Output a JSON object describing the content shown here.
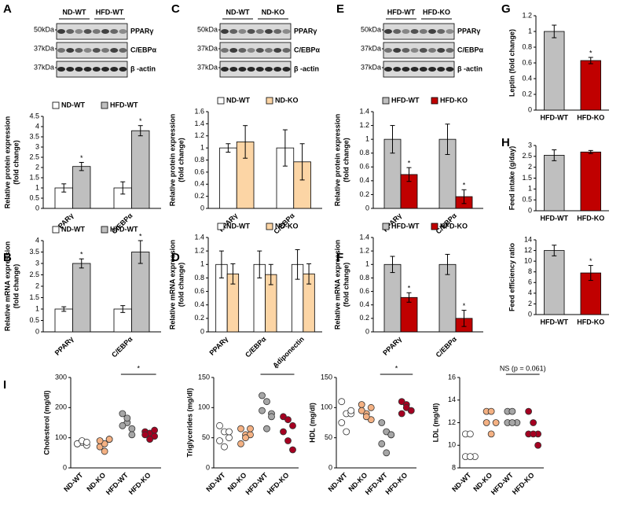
{
  "chart_data": [
    {
      "type": "bar",
      "panel": "A",
      "ylabel": [
        "Relative protein expression",
        "(fold change)"
      ],
      "categories": [
        "PPARγ",
        "C/EBPα"
      ],
      "rotate_labels": true,
      "legend": true,
      "series": [
        {
          "name": "ND-WT",
          "color": "#ffffff",
          "values": [
            1,
            1
          ],
          "errors": [
            0.2,
            0.3
          ],
          "significance": [
            null,
            null
          ]
        },
        {
          "name": "HFD-WT",
          "color": "#bfbfbf",
          "values": [
            2.05,
            3.8
          ],
          "errors": [
            0.2,
            0.25
          ],
          "significance": [
            "*",
            "*"
          ]
        }
      ],
      "ylim": [
        0,
        4.5
      ],
      "yticks": [
        0,
        0.5,
        1,
        1.5,
        2,
        2.5,
        3,
        3.5,
        4,
        4.5
      ],
      "blot": {
        "groups": [
          "ND-WT",
          "HFD-WT"
        ],
        "markers": [
          "50kDa",
          "37kDa",
          "37kDa"
        ],
        "proteins": [
          "PPARγ",
          "C/EBPα",
          "β -actin"
        ]
      }
    },
    {
      "type": "bar",
      "panel": "B",
      "ylabel": [
        "Relative mRNA expression",
        "(fold change)"
      ],
      "categories": [
        "PPARγ",
        "C/EBPα"
      ],
      "rotate_labels": true,
      "legend": true,
      "series": [
        {
          "name": "ND-WT",
          "color": "#ffffff",
          "values": [
            1,
            1
          ],
          "errors": [
            0.1,
            0.15
          ],
          "significance": [
            null,
            null
          ]
        },
        {
          "name": "HFD-WT",
          "color": "#bfbfbf",
          "values": [
            3,
            3.5
          ],
          "errors": [
            0.2,
            0.5
          ],
          "significance": [
            "*",
            "*"
          ]
        }
      ],
      "ylim": [
        0,
        4
      ],
      "yticks": [
        0,
        0.5,
        1,
        1.5,
        2,
        2.5,
        3,
        3.5,
        4
      ]
    },
    {
      "type": "bar",
      "panel": "C",
      "ylabel": [
        "Relative protein expression",
        "(fold change)"
      ],
      "categories": [
        "PPARγ",
        "C/EBPα"
      ],
      "rotate_labels": true,
      "legend": true,
      "series": [
        {
          "name": "ND-WT",
          "color": "#ffffff",
          "values": [
            1,
            1
          ],
          "errors": [
            0.07,
            0.3
          ],
          "significance": [
            null,
            null
          ]
        },
        {
          "name": "ND-KO",
          "color": "#fcd5a5",
          "values": [
            1.1,
            0.77
          ],
          "errors": [
            0.27,
            0.3
          ],
          "significance": [
            null,
            null
          ]
        }
      ],
      "ylim": [
        0,
        1.6
      ],
      "yticks": [
        0,
        0.2,
        0.4,
        0.6,
        0.8,
        1,
        1.2,
        1.4,
        1.6
      ],
      "blot": {
        "groups": [
          "ND-WT",
          "ND-KO"
        ],
        "markers": [
          "50kDa",
          "37kDa",
          "37kDa"
        ],
        "proteins": [
          "PPARγ",
          "C/EBPα",
          "β -actin"
        ]
      }
    },
    {
      "type": "bar",
      "panel": "D",
      "ylabel": [
        "Relative mRNA expression",
        "(fold change)"
      ],
      "categories": [
        "PPARγ",
        "C/EBPα",
        "Adiponectin"
      ],
      "rotate_labels": true,
      "legend": true,
      "series": [
        {
          "name": "ND-WT",
          "color": "#ffffff",
          "values": [
            1,
            1,
            1
          ],
          "errors": [
            0.2,
            0.2,
            0.22
          ],
          "significance": [
            null,
            null,
            null
          ]
        },
        {
          "name": "ND-KO",
          "color": "#fcd5a5",
          "values": [
            0.86,
            0.85,
            0.86
          ],
          "errors": [
            0.15,
            0.15,
            0.15
          ],
          "significance": [
            null,
            null,
            null
          ]
        }
      ],
      "ylim": [
        0,
        1.4
      ],
      "yticks": [
        0,
        0.2,
        0.4,
        0.6,
        0.8,
        1,
        1.2,
        1.4
      ]
    },
    {
      "type": "bar",
      "panel": "E",
      "ylabel": [
        "Relative protein expression",
        "(fold change)"
      ],
      "categories": [
        "PPARγ",
        "C/EBPα"
      ],
      "rotate_labels": true,
      "legend": true,
      "series": [
        {
          "name": "HFD-WT",
          "color": "#bfbfbf",
          "values": [
            1,
            1
          ],
          "errors": [
            0.2,
            0.22
          ],
          "significance": [
            null,
            null
          ]
        },
        {
          "name": "HFD-KO",
          "color": "#c00000",
          "values": [
            0.49,
            0.17
          ],
          "errors": [
            0.1,
            0.1
          ],
          "significance": [
            "*",
            "*"
          ]
        }
      ],
      "ylim": [
        0,
        1.4
      ],
      "yticks": [
        0,
        0.2,
        0.4,
        0.6,
        0.8,
        1,
        1.2,
        1.4
      ],
      "blot": {
        "groups": [
          "HFD-WT",
          "HFD-KO"
        ],
        "markers": [
          "50kDa",
          "37kDa",
          "37kDa"
        ],
        "proteins": [
          "PPARγ",
          "C/EBPα",
          "β -actin"
        ]
      }
    },
    {
      "type": "bar",
      "panel": "F",
      "ylabel": [
        "Relative mRNA expression",
        "(fold change)"
      ],
      "categories": [
        "PPARγ",
        "C/EBPα"
      ],
      "rotate_labels": true,
      "legend": true,
      "series": [
        {
          "name": "HFD-WT",
          "color": "#bfbfbf",
          "values": [
            1,
            1
          ],
          "errors": [
            0.12,
            0.15
          ],
          "significance": [
            null,
            null
          ]
        },
        {
          "name": "HFD-KO",
          "color": "#c00000",
          "values": [
            0.51,
            0.2
          ],
          "errors": [
            0.07,
            0.12
          ],
          "significance": [
            "*",
            "*"
          ]
        }
      ],
      "ylim": [
        0,
        1.4
      ],
      "yticks": [
        0,
        0.2,
        0.4,
        0.6,
        0.8,
        1,
        1.2,
        1.4
      ]
    },
    {
      "type": "bar",
      "panel": "G",
      "ylabel": [
        "Leptin (fold change)"
      ],
      "categories": [
        "HFD-WT",
        "HFD-KO"
      ],
      "rotate_labels": false,
      "legend": false,
      "values": [
        1,
        0.63
      ],
      "errors": [
        0.08,
        0.04
      ],
      "significance": [
        null,
        "*"
      ],
      "colors": [
        "#bfbfbf",
        "#c00000"
      ],
      "ylim": [
        0,
        1.2
      ],
      "yticks": [
        0,
        0.2,
        0.4,
        0.6,
        0.8,
        1,
        1.2
      ]
    },
    {
      "type": "bar",
      "panel": "H",
      "ylabel": [
        "Feed intake (g/day)"
      ],
      "categories": [
        "HFD-WT",
        "HFD-KO"
      ],
      "rotate_labels": false,
      "legend": false,
      "values": [
        2.55,
        2.7
      ],
      "errors": [
        0.25,
        0.07
      ],
      "significance": [
        null,
        null
      ],
      "colors": [
        "#bfbfbf",
        "#c00000"
      ],
      "ylim": [
        0,
        3
      ],
      "yticks": [
        0,
        0.5,
        1,
        1.5,
        2,
        2.5,
        3
      ]
    },
    {
      "type": "bar",
      "ylabel": [
        "Feed efficiency ratio"
      ],
      "categories": [
        "HFD-WT",
        "HFD-KO"
      ],
      "rotate_labels": false,
      "legend": false,
      "values": [
        12,
        7.8
      ],
      "errors": [
        1,
        1.4
      ],
      "significance": [
        null,
        "*"
      ],
      "colors": [
        "#bfbfbf",
        "#c00000"
      ],
      "ylim": [
        0,
        14
      ],
      "yticks": [
        0,
        2,
        4,
        6,
        8,
        10,
        12,
        14
      ]
    },
    {
      "type": "dot",
      "panel": "I",
      "ylabel": [
        "Cholesterol (mg/dl)"
      ],
      "annotation": "*",
      "series": [
        {
          "name": "ND-WT",
          "color": "#ffffff",
          "values": [
            80,
            85,
            75,
            80,
            90,
            85
          ]
        },
        {
          "name": "ND-KO",
          "color": "#f4b183",
          "values": [
            70,
            80,
            95,
            90,
            55,
            95
          ]
        },
        {
          "name": "HFD-WT",
          "color": "#a6a6a6",
          "values": [
            180,
            150,
            130,
            140,
            165,
            110
          ]
        },
        {
          "name": "HFD-KO",
          "color": "#a50021",
          "values": [
            120,
            115,
            105,
            110,
            95,
            125
          ]
        }
      ],
      "ylim": [
        0,
        300
      ],
      "yticks": [
        0,
        100,
        200,
        300
      ]
    },
    {
      "type": "dot",
      "ylabel": [
        "Triglycerides (mg/dl)"
      ],
      "annotation": "*",
      "series": [
        {
          "name": "ND-WT",
          "color": "#ffffff",
          "values": [
            70,
            60,
            50,
            45,
            35,
            60
          ]
        },
        {
          "name": "ND-KO",
          "color": "#f4b183",
          "values": [
            65,
            55,
            55,
            40,
            50,
            65
          ]
        },
        {
          "name": "HFD-WT",
          "color": "#a6a6a6",
          "values": [
            120,
            110,
            90,
            95,
            65,
            85
          ]
        },
        {
          "name": "HFD-KO",
          "color": "#a50021",
          "values": [
            85,
            80,
            70,
            60,
            45,
            30
          ]
        }
      ],
      "ylim": [
        0,
        150
      ],
      "yticks": [
        0,
        50,
        100,
        150
      ]
    },
    {
      "type": "dot",
      "ylabel": [
        "HDL (mg/dl)"
      ],
      "annotation": "*",
      "series": [
        {
          "name": "ND-WT",
          "color": "#ffffff",
          "values": [
            110,
            90,
            90,
            75,
            60,
            95
          ]
        },
        {
          "name": "ND-KO",
          "color": "#f4b183",
          "values": [
            105,
            90,
            80,
            95,
            85,
            100
          ]
        },
        {
          "name": "HFD-WT",
          "color": "#a6a6a6",
          "values": [
            75,
            60,
            55,
            40,
            25,
            55
          ]
        },
        {
          "name": "HFD-KO",
          "color": "#a50021",
          "values": [
            110,
            105,
            95,
            90,
            100,
            95
          ]
        }
      ],
      "ylim": [
        0,
        150
      ],
      "yticks": [
        0,
        50,
        100,
        150
      ]
    },
    {
      "type": "dot",
      "ylabel": [
        "LDL (mg/dl)"
      ],
      "annotation": "NS (p = 0.061)",
      "series": [
        {
          "name": "ND-WT",
          "color": "#ffffff",
          "values": [
            11,
            11,
            9,
            9,
            9
          ]
        },
        {
          "name": "ND-KO",
          "color": "#f4b183",
          "values": [
            13,
            13,
            12,
            12,
            11
          ]
        },
        {
          "name": "HFD-WT",
          "color": "#a6a6a6",
          "values": [
            13,
            13,
            12,
            12,
            12
          ]
        },
        {
          "name": "HFD-KO",
          "color": "#a50021",
          "values": [
            13,
            12,
            11,
            11,
            11,
            10
          ]
        }
      ],
      "ylim": [
        8,
        16
      ],
      "yticks": [
        8,
        10,
        12,
        14,
        16
      ]
    }
  ]
}
